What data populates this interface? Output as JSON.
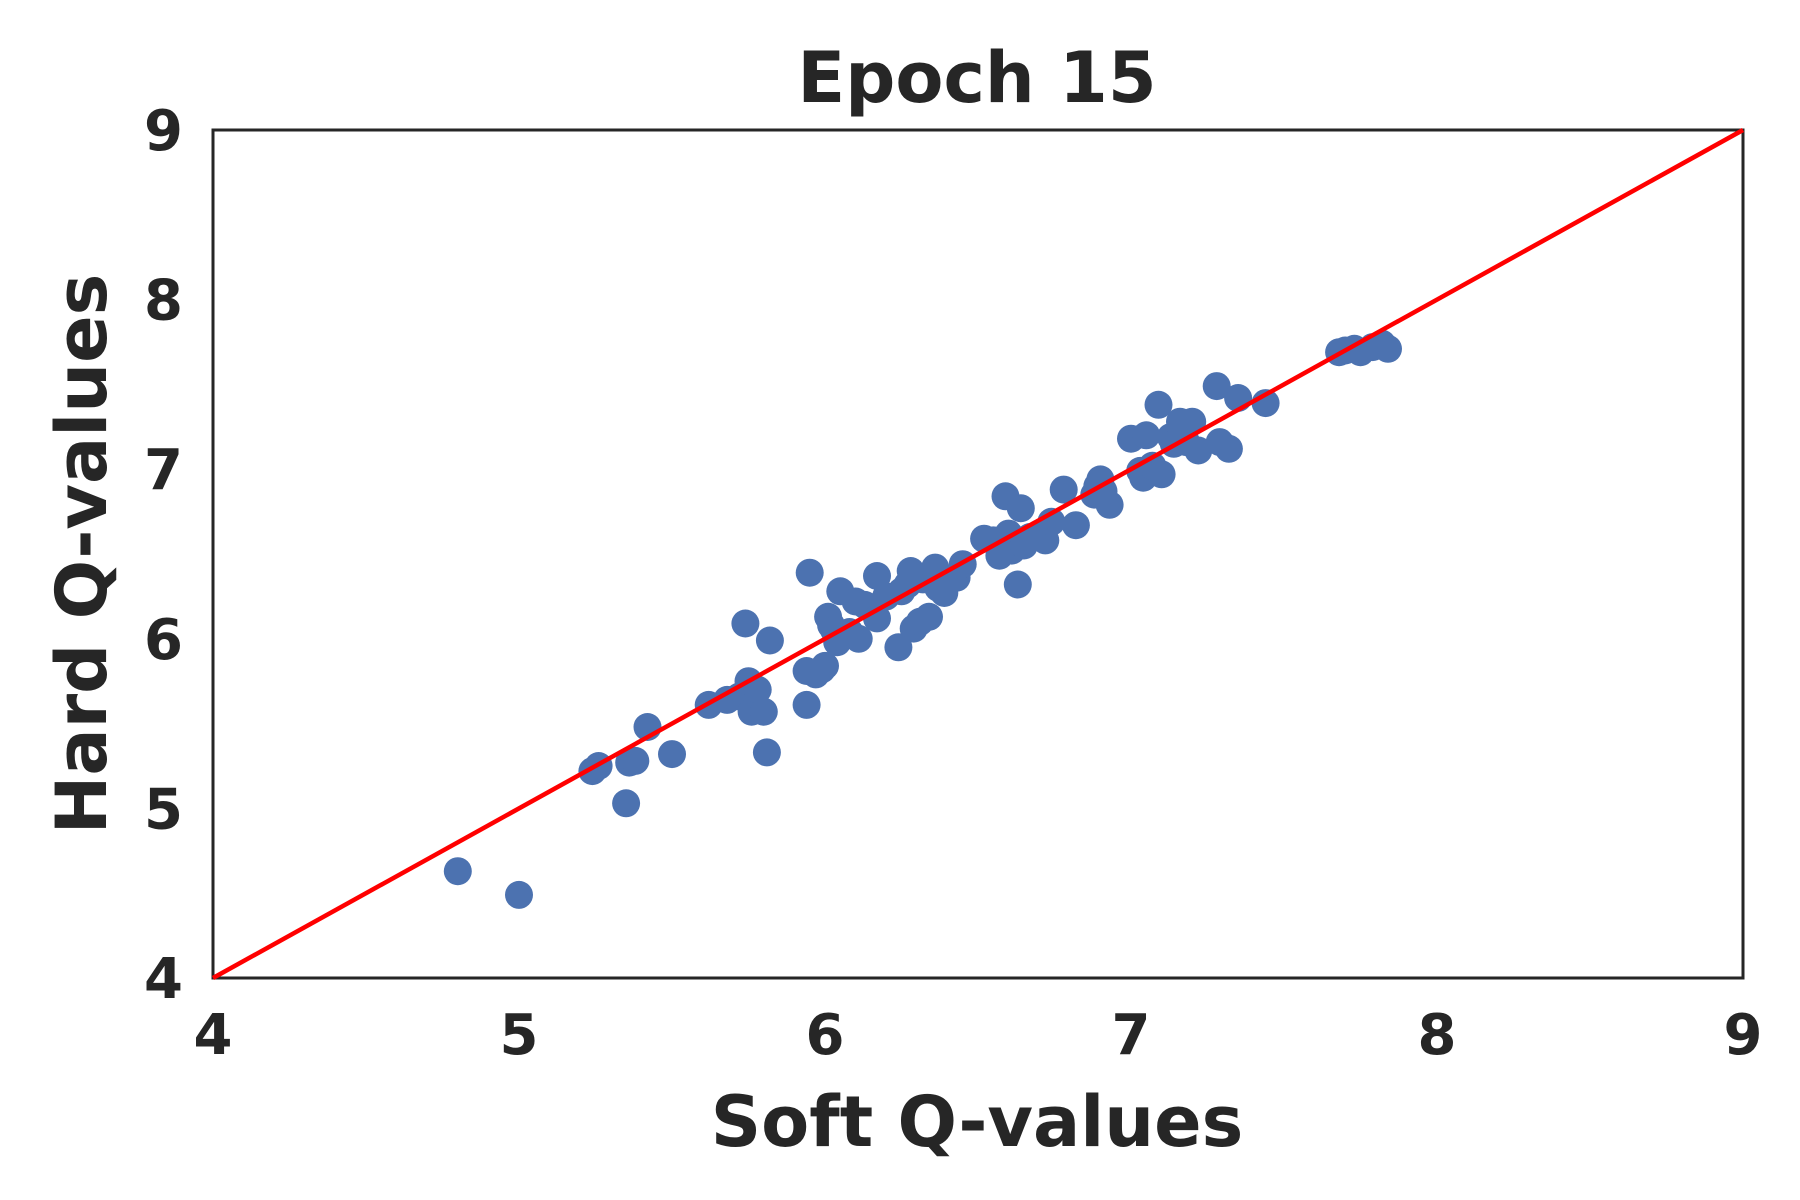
{
  "chart_data": {
    "type": "scatter",
    "title": "Epoch 15",
    "xlabel": "Soft Q-values",
    "ylabel": "Hard Q-values",
    "xlim": [
      4,
      9
    ],
    "ylim": [
      4,
      9
    ],
    "xticks": [
      "4",
      "5",
      "6",
      "7",
      "8",
      "9"
    ],
    "yticks": [
      "4",
      "5",
      "6",
      "7",
      "8",
      "9"
    ],
    "grid": false,
    "point_color": "#4c72b0",
    "reference_line": {
      "from": [
        4,
        4
      ],
      "to": [
        9,
        9
      ],
      "color": "#ff0000"
    },
    "points": [
      [
        4.8,
        4.63
      ],
      [
        5.0,
        4.49
      ],
      [
        5.24,
        5.22
      ],
      [
        5.26,
        5.25
      ],
      [
        5.35,
        5.03
      ],
      [
        5.36,
        5.27
      ],
      [
        5.38,
        5.28
      ],
      [
        5.42,
        5.48
      ],
      [
        5.5,
        5.32
      ],
      [
        5.62,
        5.61
      ],
      [
        5.68,
        5.64
      ],
      [
        5.72,
        5.66
      ],
      [
        5.74,
        6.09
      ],
      [
        5.75,
        5.75
      ],
      [
        5.76,
        5.57
      ],
      [
        5.78,
        5.7
      ],
      [
        5.8,
        5.57
      ],
      [
        5.81,
        5.33
      ],
      [
        5.82,
        5.99
      ],
      [
        5.94,
        5.61
      ],
      [
        5.94,
        5.81
      ],
      [
        5.95,
        6.39
      ],
      [
        5.97,
        5.79
      ],
      [
        5.99,
        5.82
      ],
      [
        6.0,
        5.84
      ],
      [
        6.01,
        6.13
      ],
      [
        6.02,
        6.08
      ],
      [
        6.03,
        6.05
      ],
      [
        6.04,
        5.98
      ],
      [
        6.05,
        6.28
      ],
      [
        6.08,
        6.04
      ],
      [
        6.1,
        6.22
      ],
      [
        6.11,
        6.0
      ],
      [
        6.13,
        6.2
      ],
      [
        6.16,
        6.18
      ],
      [
        6.17,
        6.12
      ],
      [
        6.17,
        6.37
      ],
      [
        6.2,
        6.25
      ],
      [
        6.24,
        5.95
      ],
      [
        6.25,
        6.28
      ],
      [
        6.27,
        6.32
      ],
      [
        6.28,
        6.4
      ],
      [
        6.29,
        6.06
      ],
      [
        6.31,
        6.1
      ],
      [
        6.32,
        6.35
      ],
      [
        6.34,
        6.13
      ],
      [
        6.36,
        6.42
      ],
      [
        6.37,
        6.3
      ],
      [
        6.39,
        6.27
      ],
      [
        6.41,
        6.35
      ],
      [
        6.43,
        6.36
      ],
      [
        6.45,
        6.44
      ],
      [
        6.52,
        6.59
      ],
      [
        6.55,
        6.58
      ],
      [
        6.57,
        6.49
      ],
      [
        6.59,
        6.84
      ],
      [
        6.6,
        6.62
      ],
      [
        6.61,
        6.52
      ],
      [
        6.63,
        6.32
      ],
      [
        6.64,
        6.77
      ],
      [
        6.65,
        6.55
      ],
      [
        6.67,
        6.6
      ],
      [
        6.7,
        6.62
      ],
      [
        6.72,
        6.58
      ],
      [
        6.74,
        6.69
      ],
      [
        6.78,
        6.88
      ],
      [
        6.82,
        6.67
      ],
      [
        6.88,
        6.85
      ],
      [
        6.89,
        6.9
      ],
      [
        6.9,
        6.94
      ],
      [
        6.91,
        6.87
      ],
      [
        6.93,
        6.79
      ],
      [
        7.0,
        7.18
      ],
      [
        7.03,
        6.99
      ],
      [
        7.04,
        6.95
      ],
      [
        7.05,
        7.2
      ],
      [
        7.07,
        7.02
      ],
      [
        7.09,
        7.38
      ],
      [
        7.1,
        6.97
      ],
      [
        7.13,
        7.19
      ],
      [
        7.14,
        7.15
      ],
      [
        7.16,
        7.28
      ],
      [
        7.18,
        7.16
      ],
      [
        7.2,
        7.28
      ],
      [
        7.22,
        7.11
      ],
      [
        7.28,
        7.49
      ],
      [
        7.29,
        7.16
      ],
      [
        7.32,
        7.12
      ],
      [
        7.35,
        7.42
      ],
      [
        7.44,
        7.39
      ],
      [
        7.68,
        7.69
      ],
      [
        7.7,
        7.7
      ],
      [
        7.73,
        7.71
      ],
      [
        7.75,
        7.69
      ],
      [
        7.79,
        7.72
      ],
      [
        7.82,
        7.74
      ],
      [
        7.84,
        7.71
      ]
    ]
  }
}
